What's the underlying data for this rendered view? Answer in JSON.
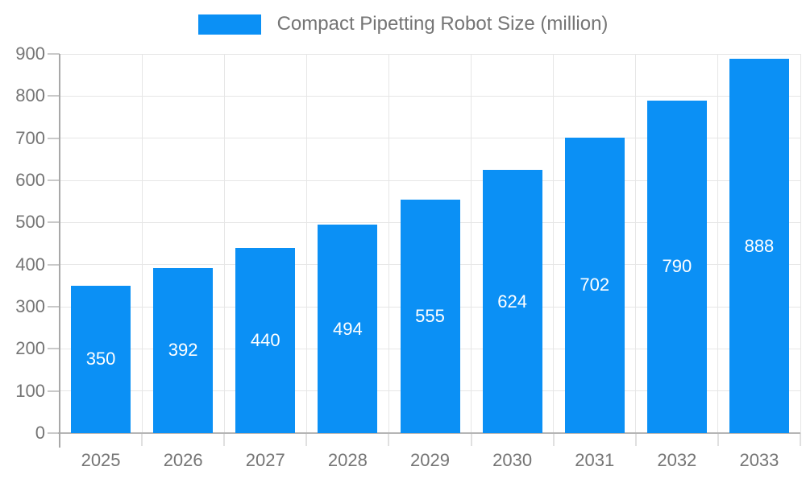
{
  "chart_data": {
    "type": "bar",
    "title": "Compact Pipetting Robot Size (million)",
    "categories": [
      "2025",
      "2026",
      "2027",
      "2028",
      "2029",
      "2030",
      "2031",
      "2032",
      "2033"
    ],
    "values": [
      350,
      392,
      440,
      494,
      555,
      624,
      702,
      790,
      888
    ],
    "ylim": [
      0,
      900
    ],
    "ytick_step": 100,
    "ytick_labels": [
      "0",
      "100",
      "200",
      "300",
      "400",
      "500",
      "600",
      "700",
      "800",
      "900"
    ],
    "grid": true,
    "legend_position": "top",
    "bar_label_position": "center-inside",
    "colors": {
      "bar": "#0B90F5",
      "bar_value_text": "#ffffff",
      "axis_text": "#757575",
      "grid_line": "#e6e6e6",
      "axis_line": "#b5b5b5"
    }
  }
}
